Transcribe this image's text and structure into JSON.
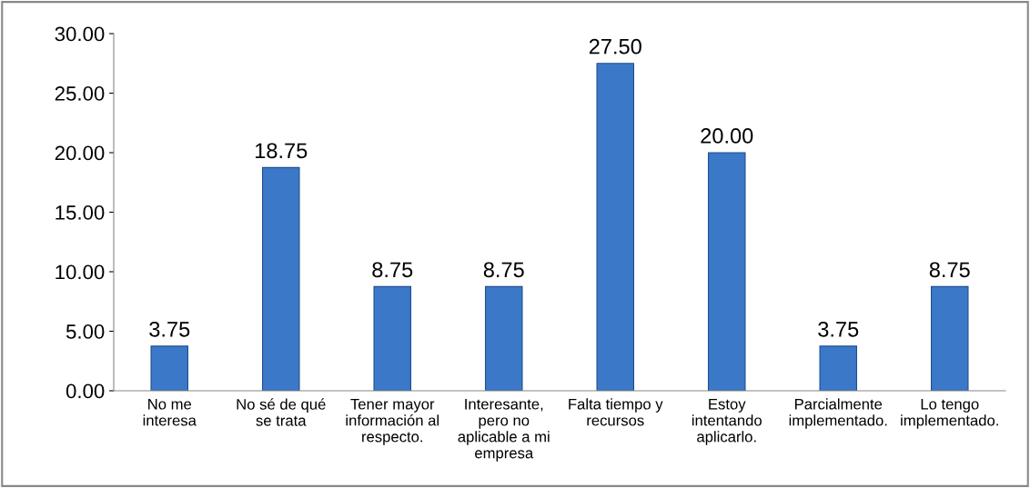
{
  "chart_data": {
    "type": "bar",
    "categories": [
      "No me\ninteresa",
      "No sé de qué\nse trata",
      "Tener mayor\ninformación al\nrespecto.",
      "Interesante,\npero no\naplicable a mi\nempresa",
      "Falta tiempo y\nrecursos",
      "Estoy\nintentando\naplicarlo.",
      "Parcialmente\nimplementado.",
      "Lo tengo\nimplementado."
    ],
    "values": [
      3.75,
      18.75,
      8.75,
      8.75,
      27.5,
      20.0,
      3.75,
      8.75
    ],
    "value_labels": [
      "3.75",
      "18.75",
      "8.75",
      "8.75",
      "27.50",
      "20.00",
      "3.75",
      "8.75"
    ],
    "color": "#3b78c8",
    "ylim": [
      0,
      30
    ],
    "yticks": [
      {
        "value": 0,
        "label": "0.00"
      },
      {
        "value": 5,
        "label": "5.00"
      },
      {
        "value": 10,
        "label": "10.00"
      },
      {
        "value": 15,
        "label": "15.00"
      },
      {
        "value": 20,
        "label": "20.00"
      },
      {
        "value": 25,
        "label": "25.00"
      },
      {
        "value": 30,
        "label": "30.00"
      }
    ],
    "grid": false,
    "legend": false
  }
}
